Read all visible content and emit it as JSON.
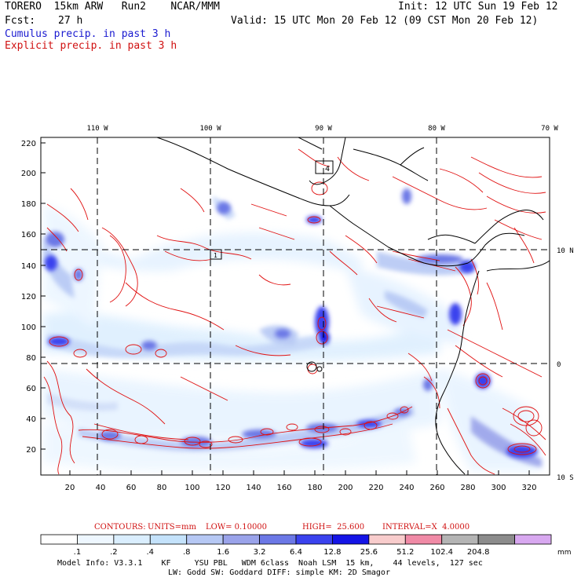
{
  "header": {
    "model": "TORERO  15km ARW   Run2    NCAR/MMM",
    "init": "Init: 12 UTC Sun 19 Feb 12",
    "fcst_label": "Fcst:",
    "fcst_value": "27 h",
    "valid": "Valid: 15 UTC Mon 20 Feb 12 (09 CST Mon 20 Feb 12)",
    "cumulus": "Cumulus precip. in past 3 h",
    "explicit": "Explicit precip. in past 3 h"
  },
  "map": {
    "top_lon_labels": [
      "110 W",
      "100 W",
      "90 W",
      "80 W",
      "70 W"
    ],
    "right_lat_labels": [
      "10 N",
      "0",
      "10 S"
    ],
    "left_grid_labels": [
      "220",
      "200",
      "180",
      "160",
      "140",
      "120",
      "100",
      "80",
      "60",
      "40",
      "20"
    ],
    "bottom_grid_labels": [
      "20",
      "40",
      "60",
      "80",
      "100",
      "120",
      "140",
      "160",
      "180",
      "200",
      "220",
      "240",
      "260",
      "280",
      "300",
      "320"
    ],
    "box_labels": [
      "4",
      "1"
    ]
  },
  "contours": {
    "label": "CONTOURS:",
    "units": "UNITS=mm",
    "low": "LOW= 0.10000",
    "high": "HIGH=  25.600",
    "interval": "INTERVAL=X  4.0000"
  },
  "colorbar": {
    "labels": [
      ".1",
      ".2",
      ".4",
      ".8",
      "1.6",
      "3.2",
      "6.4",
      "12.8",
      "25.6",
      "51.2",
      "102.4",
      "204.8"
    ],
    "unit": "mm",
    "colors": [
      "#ffffff",
      "#eef7ff",
      "#daeefe",
      "#c4e2fb",
      "#b6c8f4",
      "#9aa3ea",
      "#6c78e6",
      "#3a42ee",
      "#1414e6",
      "#f8cccc",
      "#f08aa6",
      "#b4b4b4",
      "#8c8c8c",
      "#d8a8f0"
    ]
  },
  "footer": {
    "line1": "Model Info: V3.3.1    KF     YSU PBL   WDM 6class  Noah LSM  15 km,    44 levels,  127 sec",
    "line2": "LW: Godd SW: Goddard DIFF: simple KM: 2D Smagor"
  }
}
